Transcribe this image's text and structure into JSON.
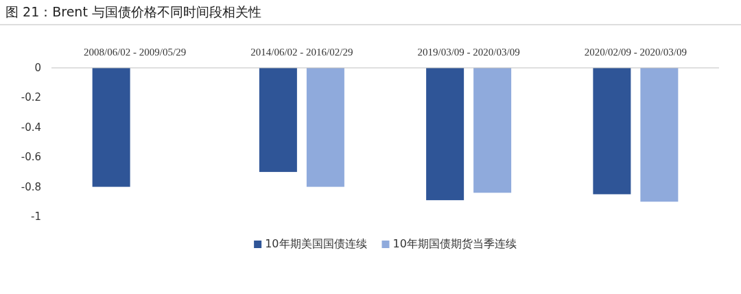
{
  "chart_data": {
    "type": "bar",
    "title": "图 21：Brent 与国债价格不同时间段相关性",
    "categories": [
      "2008/06/02 - 2009/05/29",
      "2014/06/02 - 2016/02/29",
      "2019/03/09 - 2020/03/09",
      "2020/02/09 - 2020/03/09"
    ],
    "series": [
      {
        "name": "10年期美国国债连续",
        "color": "#2f5597",
        "values": [
          -0.8,
          -0.7,
          -0.89,
          -0.85
        ]
      },
      {
        "name": "10年期国债期货当季连续",
        "color": "#8faadc",
        "values": [
          null,
          -0.8,
          -0.84,
          -0.9
        ]
      }
    ],
    "ylim": [
      -1,
      0
    ],
    "yticks": [
      0,
      -0.2,
      -0.4,
      -0.6,
      -0.8,
      -1
    ],
    "grid": false,
    "legend": "bottom"
  }
}
